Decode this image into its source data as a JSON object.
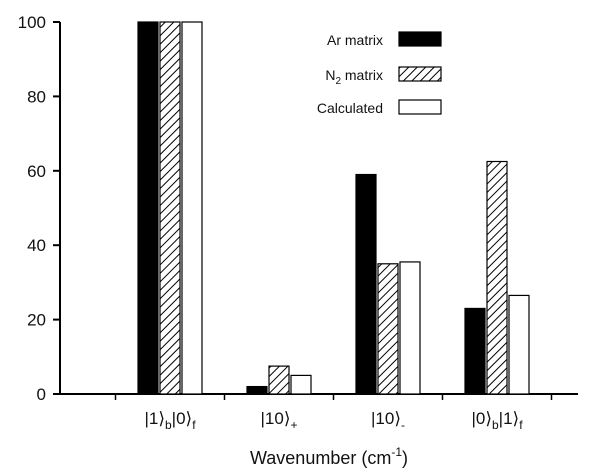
{
  "chart_data": {
    "type": "bar",
    "title": "",
    "xlabel": "Wavenumber (cm⁻¹)",
    "ylabel": "",
    "ylim": [
      0,
      100
    ],
    "yticks": [
      "0",
      "20",
      "40",
      "60",
      "80",
      "100"
    ],
    "categories": [
      "|1⟩b|0⟩f",
      "|10⟩+",
      "|10⟩-",
      "|0⟩b|1⟩f"
    ],
    "series": [
      {
        "name": "Ar matrix",
        "fill": "solid-black",
        "values": [
          100,
          2,
          59,
          23
        ]
      },
      {
        "name": "N₂ matrix",
        "fill": "diagonal-hatch",
        "values": [
          100,
          7.5,
          35,
          62.5
        ]
      },
      {
        "name": "Calculated",
        "fill": "white",
        "values": [
          100,
          5,
          35.5,
          26.5
        ]
      }
    ],
    "legend_position": "top-right",
    "colors": {
      "axis": "#000000",
      "background": "#ffffff",
      "ar_matrix": "#000000",
      "n2_hatch": "#000000",
      "calculated_fill": "#ffffff"
    }
  }
}
